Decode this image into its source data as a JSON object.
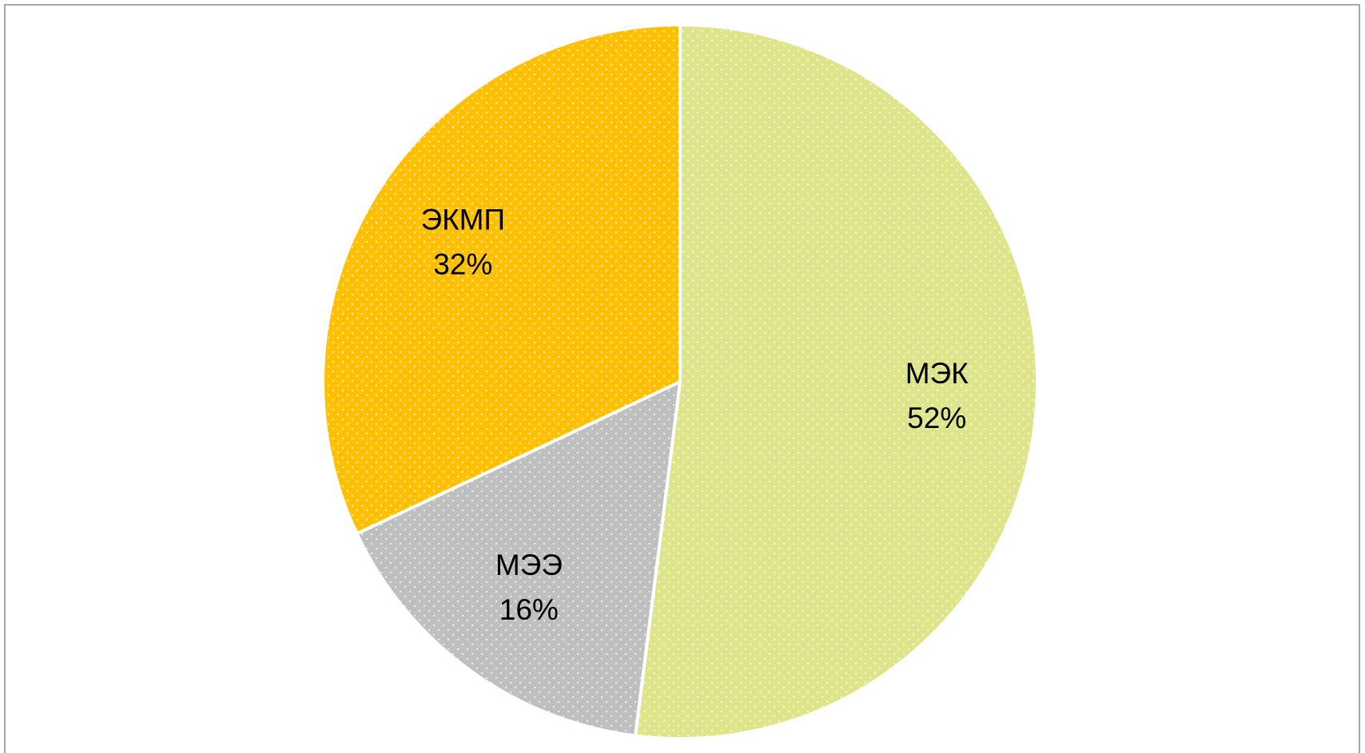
{
  "chart_data": {
    "type": "pie",
    "categories": [
      "МЭК",
      "МЭЭ",
      "ЭКМП"
    ],
    "values": [
      52,
      16,
      32
    ],
    "value_labels": [
      "52%",
      "16%",
      "32%"
    ],
    "colors": [
      "#dde48a",
      "#bfbfbf",
      "#ffc000"
    ]
  }
}
